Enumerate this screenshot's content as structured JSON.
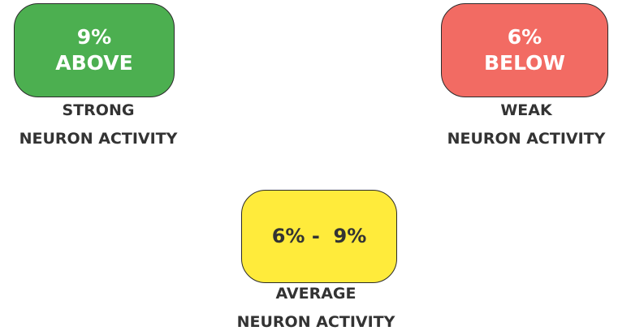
{
  "categories": [
    {
      "key": "strong",
      "badge_line1": "9%",
      "badge_line2": "ABOVE",
      "label_line1": "STRONG",
      "label_line2": "NEURON ACTIVITY",
      "color": "#4caf50"
    },
    {
      "key": "weak",
      "badge_line1": "6%",
      "badge_line2": "BELOW",
      "label_line1": "WEAK",
      "label_line2": "NEURON ACTIVITY",
      "color": "#f26b63"
    },
    {
      "key": "average",
      "badge_text": "6% -  9%",
      "label_line1": "AVERAGE",
      "label_line2": "NEURON ACTIVITY",
      "color": "#ffeb3b"
    }
  ]
}
